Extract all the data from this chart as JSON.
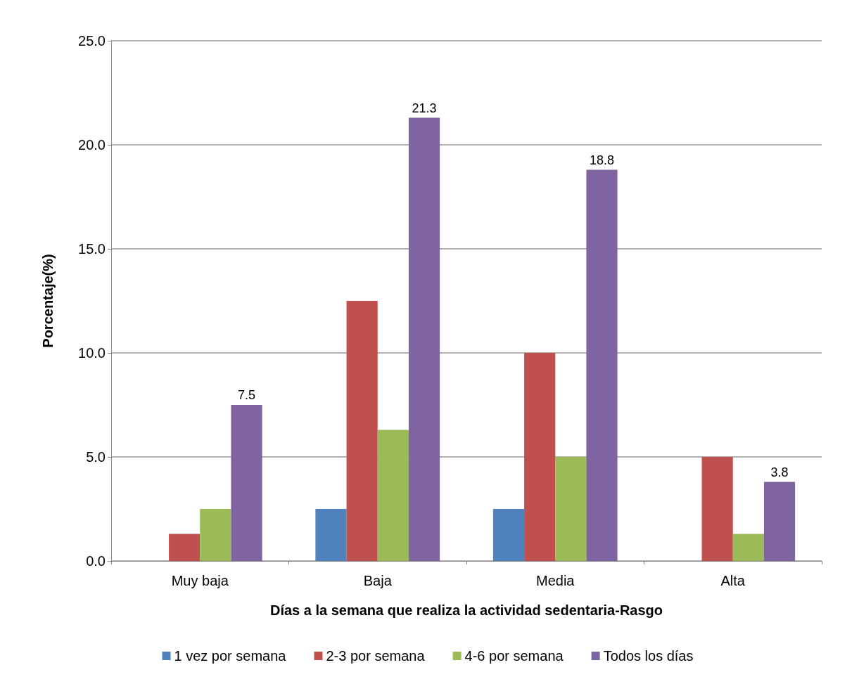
{
  "chart_data": {
    "type": "bar",
    "xlabel": "Días a la semana que realiza la actividad sedentaria-Rasgo",
    "ylabel": "Porcentaje(%)",
    "categories": [
      "Muy baja",
      "Baja",
      "Media",
      "Alta"
    ],
    "series": [
      {
        "name": "1 vez por semana",
        "color": "#4f81bd",
        "values": [
          0,
          2.5,
          2.5,
          0
        ]
      },
      {
        "name": "2-3 por semana",
        "color": "#c0504d",
        "values": [
          1.3,
          12.5,
          10.0,
          5.0
        ]
      },
      {
        "name": "4-6 por semana",
        "color": "#9bbb59",
        "values": [
          2.5,
          6.3,
          5.0,
          1.3
        ]
      },
      {
        "name": "Todos los días",
        "color": "#8064a2",
        "values": [
          7.5,
          21.3,
          18.8,
          3.8
        ],
        "value_labels": [
          "7.5",
          "21.3",
          "18.8",
          "3.8"
        ]
      }
    ],
    "ylim": [
      0,
      25
    ],
    "yticks": [
      {
        "value": 0,
        "label": "0.0"
      },
      {
        "value": 5,
        "label": "5.0"
      },
      {
        "value": 10,
        "label": "10.0"
      },
      {
        "value": 15,
        "label": "15.0"
      },
      {
        "value": 20,
        "label": "20.0"
      },
      {
        "value": 25,
        "label": "25.0"
      }
    ],
    "grid": "y",
    "legend": "bottom"
  }
}
